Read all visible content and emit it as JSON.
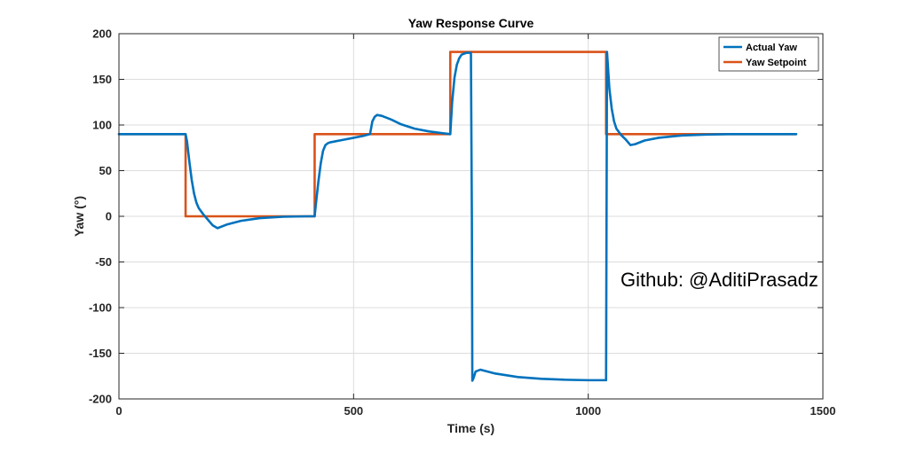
{
  "chart_data": {
    "type": "line",
    "title": "Yaw Response Curve",
    "xlabel": "Time (s)",
    "ylabel": "Yaw (°)",
    "xlim": [
      0,
      1500
    ],
    "ylim": [
      -200,
      200
    ],
    "x_ticks": [
      "0",
      "500",
      "1000",
      "1500"
    ],
    "y_ticks": [
      "200",
      "150",
      "100",
      "50",
      "0",
      "-50",
      "-100",
      "-150",
      "-200"
    ],
    "x_tick_values": [
      0,
      500,
      1000,
      1500
    ],
    "y_tick_values": [
      200,
      150,
      100,
      50,
      0,
      -50,
      -100,
      -150,
      -200
    ],
    "grid": true,
    "legend_position": "top-right",
    "annotation": "Github: @AditiPrasadz",
    "series": [
      {
        "name": "Actual Yaw",
        "color": "#0072BD",
        "x": [
          0,
          142,
          145,
          150,
          155,
          160,
          165,
          170,
          180,
          190,
          200,
          210,
          230,
          260,
          300,
          350,
          400,
          417,
          420,
          425,
          430,
          435,
          440,
          445,
          450,
          460,
          480,
          500,
          520,
          535,
          540,
          545,
          550,
          560,
          580,
          600,
          630,
          660,
          690,
          706,
          710,
          715,
          720,
          725,
          730,
          740,
          750,
          752,
          753,
          755,
          760,
          770,
          800,
          850,
          900,
          950,
          1000,
          1038,
          1039,
          1040,
          1045,
          1050,
          1055,
          1060,
          1070,
          1080,
          1090,
          1100,
          1120,
          1150,
          1200,
          1250,
          1300,
          1443
        ],
        "y": [
          90,
          90,
          82,
          60,
          40,
          25,
          15,
          9,
          2,
          -4,
          -10,
          -13,
          -9,
          -5,
          -2,
          -0.5,
          0,
          0,
          15,
          38,
          58,
          72,
          78,
          80,
          81,
          82,
          84,
          86,
          88,
          90,
          104,
          109,
          111,
          110,
          106,
          101,
          96,
          93,
          91,
          90,
          125,
          152,
          166,
          173,
          177,
          179,
          179,
          0,
          -180,
          -178,
          -170,
          -168,
          -172,
          -176,
          -178,
          -179,
          -179.5,
          -179.5,
          0,
          180,
          140,
          118,
          104,
          96,
          89,
          84,
          78,
          79,
          83,
          86,
          88.5,
          89.5,
          90,
          90
        ]
      },
      {
        "name": "Yaw Setpoint",
        "color": "#D95319",
        "x": [
          0,
          142,
          142,
          417,
          417,
          706,
          706,
          1038,
          1038,
          1443
        ],
        "y": [
          90,
          90,
          0,
          0,
          90,
          90,
          180,
          180,
          90,
          90
        ]
      }
    ]
  }
}
